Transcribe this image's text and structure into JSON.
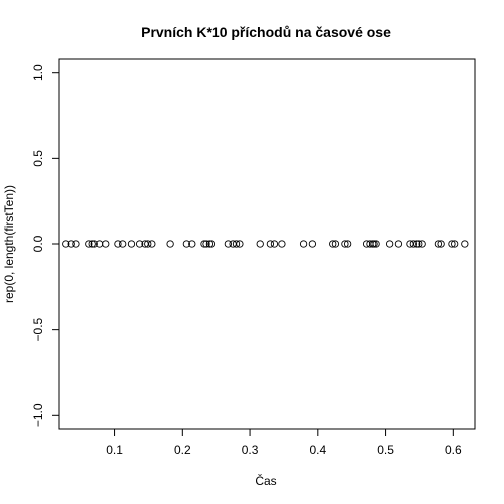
{
  "chart_data": {
    "type": "scatter",
    "title": "Prvních K*10 příchodů na časové ose",
    "xlabel": "Čas",
    "ylabel": "rep(0, length(firstTen))",
    "xlim": [
      0.018,
      0.632
    ],
    "ylim": [
      -1.08,
      1.08
    ],
    "x_ticks": [
      0.1,
      0.2,
      0.3,
      0.4,
      0.5,
      0.6
    ],
    "x_tick_labels": [
      "0.1",
      "0.2",
      "0.3",
      "0.4",
      "0.5",
      "0.6"
    ],
    "y_ticks": [
      -1.0,
      -0.5,
      0.0,
      0.5,
      1.0
    ],
    "y_tick_labels": [
      "−1.0",
      "−0.5",
      "0.0",
      "0.5",
      "1.0"
    ],
    "grid": false,
    "marker": "open-circle",
    "series": [
      {
        "x": [
          0.028,
          0.036,
          0.043,
          0.062,
          0.067,
          0.07,
          0.078,
          0.087,
          0.105,
          0.112,
          0.125,
          0.137,
          0.145,
          0.149,
          0.155,
          0.182,
          0.206,
          0.214,
          0.232,
          0.235,
          0.24,
          0.243,
          0.268,
          0.275,
          0.28,
          0.285,
          0.315,
          0.33,
          0.336,
          0.347,
          0.379,
          0.392,
          0.422,
          0.426,
          0.44,
          0.444,
          0.472,
          0.477,
          0.481,
          0.483,
          0.486,
          0.506,
          0.519,
          0.536,
          0.541,
          0.546,
          0.549,
          0.554,
          0.578,
          0.582,
          0.598,
          0.602,
          0.617
        ],
        "y": [
          0,
          0,
          0,
          0,
          0,
          0,
          0,
          0,
          0,
          0,
          0,
          0,
          0,
          0,
          0,
          0,
          0,
          0,
          0,
          0,
          0,
          0,
          0,
          0,
          0,
          0,
          0,
          0,
          0,
          0,
          0,
          0,
          0,
          0,
          0,
          0,
          0,
          0,
          0,
          0,
          0,
          0,
          0,
          0,
          0,
          0,
          0,
          0,
          0,
          0,
          0,
          0,
          0
        ]
      }
    ]
  }
}
